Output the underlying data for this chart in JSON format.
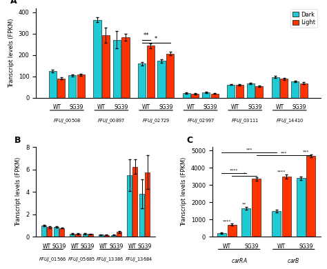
{
  "panel_A": {
    "groups": [
      {
        "label": "FFUJ_00508",
        "WT_dark": 125,
        "WT_light": 90,
        "SG39_dark": 105,
        "SG39_light": 108,
        "WT_dark_err": 5,
        "WT_light_err": 5,
        "SG39_dark_err": 5,
        "SG39_light_err": 5
      },
      {
        "label": "FFUJ_00897",
        "WT_dark": 365,
        "WT_light": 292,
        "SG39_dark": 272,
        "SG39_light": 283,
        "WT_dark_err": 12,
        "WT_light_err": 35,
        "SG39_dark_err": 40,
        "SG39_light_err": 15
      },
      {
        "label": "FFUJ_02729",
        "WT_dark": 160,
        "WT_light": 243,
        "SG39_dark": 173,
        "SG39_light": 207,
        "WT_dark_err": 8,
        "WT_light_err": 10,
        "SG39_dark_err": 8,
        "SG39_light_err": 8
      },
      {
        "label": "FFUJ_02997",
        "WT_dark": 23,
        "WT_light": 18,
        "SG39_dark": 24,
        "SG39_light": 20,
        "WT_dark_err": 3,
        "WT_light_err": 3,
        "SG39_dark_err": 3,
        "SG39_light_err": 3
      },
      {
        "label": "FFUJ_03111",
        "WT_dark": 62,
        "WT_light": 60,
        "SG39_dark": 68,
        "SG39_light": 55,
        "WT_dark_err": 3,
        "WT_light_err": 3,
        "SG39_dark_err": 3,
        "SG39_light_err": 3
      },
      {
        "label": "FFUJ_14410",
        "WT_dark": 97,
        "WT_light": 88,
        "SG39_dark": 77,
        "SG39_light": 68,
        "WT_dark_err": 4,
        "WT_light_err": 4,
        "SG39_dark_err": 4,
        "SG39_light_err": 4
      }
    ],
    "ylabel": "Transcript levels (FPKM)",
    "ylim": [
      0,
      420
    ],
    "yticks": [
      0,
      100,
      200,
      300,
      400
    ]
  },
  "panel_B": {
    "groups": [
      {
        "label": "FFUJ_01566",
        "WT_dark": 1.0,
        "WT_light": 0.85,
        "SG39_dark": 0.88,
        "SG39_light": 0.78,
        "WT_dark_err": 0.08,
        "WT_light_err": 0.08,
        "SG39_dark_err": 0.08,
        "SG39_light_err": 0.05
      },
      {
        "label": "FFUJ_05685",
        "WT_dark": 0.27,
        "WT_light": 0.27,
        "SG39_dark": 0.28,
        "SG39_light": 0.23,
        "WT_dark_err": 0.07,
        "WT_light_err": 0.07,
        "SG39_dark_err": 0.07,
        "SG39_light_err": 0.05
      },
      {
        "label": "FFUJ_13386",
        "WT_dark": 0.17,
        "WT_light": 0.14,
        "SG39_dark": 0.16,
        "SG39_light": 0.43,
        "WT_dark_err": 0.03,
        "WT_light_err": 0.03,
        "SG39_dark_err": 0.03,
        "SG39_light_err": 0.1
      },
      {
        "label": "FFUJ_13684",
        "WT_dark": 5.5,
        "WT_light": 6.25,
        "SG39_dark": 3.85,
        "SG39_light": 5.75,
        "WT_dark_err": 1.4,
        "WT_light_err": 0.65,
        "SG39_dark_err": 1.3,
        "SG39_light_err": 1.5
      }
    ],
    "ylabel": "Transcript levels (FPKM)",
    "ylim": [
      0,
      8
    ],
    "yticks": [
      0,
      2,
      4,
      6,
      8
    ]
  },
  "panel_C": {
    "carRA": {
      "WT_dark": 200,
      "WT_light": 700,
      "WT_dark_err": 30,
      "WT_light_err": 60,
      "SG39_dark": 1650,
      "SG39_light": 3350,
      "SG39_dark_err": 80,
      "SG39_light_err": 100
    },
    "carB": {
      "WT_dark": 1500,
      "WT_light": 3500,
      "WT_dark_err": 80,
      "WT_light_err": 120,
      "SG39_dark": 3400,
      "SG39_light": 4700,
      "SG39_dark_err": 100,
      "SG39_light_err": 80
    },
    "ylabel": "Transcript levels (FPKM)",
    "ylim": [
      0,
      5200
    ],
    "yticks": [
      0,
      1000,
      2000,
      3000,
      4000,
      5000
    ]
  },
  "colors": {
    "dark": "#1ECAD3",
    "light": "#FF3300"
  }
}
